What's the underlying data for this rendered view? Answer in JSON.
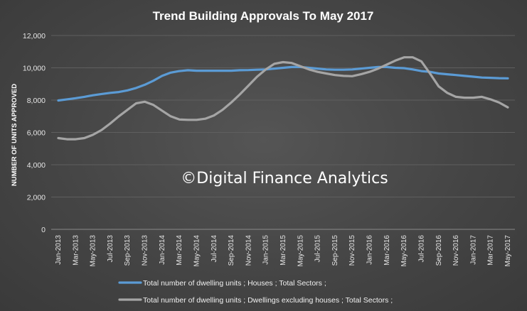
{
  "chart_data": {
    "type": "line",
    "title": "Trend Building Approvals To May 2017",
    "ylabel": "NUMBER OF UNITS APPROVED",
    "xlabel": "",
    "ylim": [
      0,
      12000
    ],
    "yticks": [
      "0",
      "2,000",
      "4,000",
      "6,000",
      "8,000",
      "10,000",
      "12,000"
    ],
    "grid": "horizontal",
    "legend_position": "bottom",
    "x_tick_labels": [
      "Jan-2013",
      "Mar-2013",
      "May-2013",
      "Jul-2013",
      "Sep-2013",
      "Nov-2013",
      "Jan-2014",
      "Mar-2014",
      "May-2014",
      "Jul-2014",
      "Sep-2014",
      "Nov-2014",
      "Jan-2015",
      "Mar-2015",
      "May-2015",
      "Jul-2015",
      "Sep-2015",
      "Nov-2015",
      "Jan-2016",
      "Mar-2016",
      "May-2016",
      "Jul-2016",
      "Sep-2016",
      "Nov-2016",
      "Jan-2017",
      "Mar-2017",
      "May-2017"
    ],
    "x": [
      "Jan-2013",
      "Feb-2013",
      "Mar-2013",
      "Apr-2013",
      "May-2013",
      "Jun-2013",
      "Jul-2013",
      "Aug-2013",
      "Sep-2013",
      "Oct-2013",
      "Nov-2013",
      "Dec-2013",
      "Jan-2014",
      "Feb-2014",
      "Mar-2014",
      "Apr-2014",
      "May-2014",
      "Jun-2014",
      "Jul-2014",
      "Aug-2014",
      "Sep-2014",
      "Oct-2014",
      "Nov-2014",
      "Dec-2014",
      "Jan-2015",
      "Feb-2015",
      "Mar-2015",
      "Apr-2015",
      "May-2015",
      "Jun-2015",
      "Jul-2015",
      "Aug-2015",
      "Sep-2015",
      "Oct-2015",
      "Nov-2015",
      "Dec-2015",
      "Jan-2016",
      "Feb-2016",
      "Mar-2016",
      "Apr-2016",
      "May-2016",
      "Jun-2016",
      "Jul-2016",
      "Aug-2016",
      "Sep-2016",
      "Oct-2016",
      "Nov-2016",
      "Dec-2016",
      "Jan-2017",
      "Feb-2017",
      "Mar-2017",
      "Apr-2017",
      "May-2017"
    ],
    "series": [
      {
        "name": "Total number of dwelling units ;  Houses ;  Total Sectors ;",
        "color": "#5b9bd5",
        "values": [
          7980,
          8050,
          8120,
          8200,
          8300,
          8380,
          8450,
          8500,
          8600,
          8750,
          8950,
          9200,
          9500,
          9700,
          9800,
          9850,
          9820,
          9820,
          9820,
          9820,
          9820,
          9850,
          9860,
          9880,
          9900,
          9950,
          10000,
          10050,
          10050,
          10000,
          9950,
          9900,
          9880,
          9880,
          9900,
          9950,
          10000,
          10050,
          10050,
          10000,
          9980,
          9900,
          9800,
          9750,
          9650,
          9600,
          9550,
          9500,
          9450,
          9400,
          9380,
          9360,
          9350
        ]
      },
      {
        "name": "Total number of dwelling units ;  Dwellings excluding houses ;  Total Sectors ;",
        "color": "#a5a5a5",
        "values": [
          5650,
          5580,
          5580,
          5650,
          5850,
          6150,
          6550,
          7000,
          7400,
          7800,
          7900,
          7700,
          7350,
          7000,
          6800,
          6780,
          6780,
          6850,
          7050,
          7400,
          7850,
          8350,
          8900,
          9450,
          9900,
          10250,
          10350,
          10300,
          10100,
          9900,
          9750,
          9650,
          9550,
          9500,
          9480,
          9600,
          9750,
          9950,
          10200,
          10450,
          10650,
          10650,
          10400,
          9650,
          8850,
          8450,
          8200,
          8150,
          8150,
          8200,
          8050,
          7850,
          7550
        ]
      }
    ]
  },
  "watermark": "©Digital Finance Analytics",
  "legend": [
    {
      "label": "Total number of dwelling units ;  Houses ;  Total Sectors ;",
      "color": "#5b9bd5"
    },
    {
      "label": "Total number of dwelling units ;  Dwellings excluding houses ;  Total Sectors ;",
      "color": "#a5a5a5"
    }
  ]
}
